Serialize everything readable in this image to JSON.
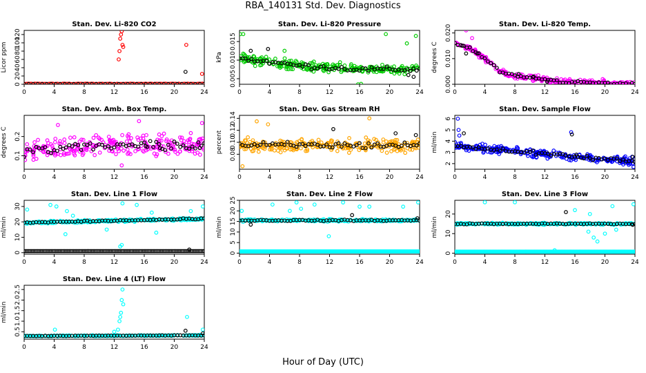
{
  "title": "RBA_140131  Std. Dev. Diagnostics",
  "xlabel": "Hour of Day (UTC)",
  "colors": {
    "co2": "#ff0000",
    "pressure": "#00cc00",
    "temp": "#ff00ff",
    "ambbox": "#ff00ff",
    "rh": "#ffa500",
    "sampleflow": "#0000ff",
    "lineflow": "#00ffff",
    "overlay": "#000000"
  },
  "chart_data": [
    {
      "id": "co2",
      "type": "scatter",
      "title": "Stan. Dev. Li-820 CO2",
      "ylabel": "Licor ppm",
      "xlim": [
        0,
        24
      ],
      "ylim": [
        0,
        130
      ],
      "yticks": [
        "0",
        "20",
        "40",
        "60",
        "80",
        "100",
        "120"
      ],
      "xticks": [
        "0",
        "4",
        "8",
        "12",
        "16",
        "20",
        "24"
      ],
      "baseline": 0.5,
      "noise": 1,
      "series": [
        {
          "name": "primary",
          "color": "#ff0000",
          "points": [
            [
              12.6,
              60
            ],
            [
              12.7,
              80
            ],
            [
              12.8,
              110
            ],
            [
              12.9,
              120
            ],
            [
              13.0,
              128
            ],
            [
              13.1,
              95
            ],
            [
              13.2,
              90
            ],
            [
              21.6,
              95
            ],
            [
              23.7,
              25
            ]
          ]
        },
        {
          "name": "overlay",
          "color": "#000000",
          "points": [
            [
              21.5,
              30
            ]
          ]
        }
      ]
    },
    {
      "id": "pressure",
      "type": "scatter",
      "title": "Stan. Dev. Li-820 Pressure",
      "ylabel": "kPa",
      "xlim": [
        0,
        24
      ],
      "ylim": [
        0.0035,
        0.018
      ],
      "yticks": [
        "0.005",
        "0.010",
        "0.015"
      ],
      "xticks": [
        "0",
        "4",
        "8",
        "12",
        "16",
        "20",
        "24"
      ],
      "trend": [
        [
          0,
          0.0105
        ],
        [
          8,
          0.0085
        ],
        [
          16,
          0.0075
        ],
        [
          24,
          0.0075
        ]
      ],
      "spread": 0.0018,
      "series": [
        {
          "name": "primary",
          "color": "#00cc00",
          "points": [
            [
              0.1,
              0.017
            ],
            [
              0.5,
              0.017
            ],
            [
              19.5,
              0.017
            ],
            [
              23.5,
              0.0165
            ],
            [
              22.3,
              0.0145
            ],
            [
              6,
              0.0125
            ],
            [
              15.8,
              0.0035
            ],
            [
              16.2,
              0.0036
            ]
          ]
        },
        {
          "name": "overlay",
          "color": "#000000",
          "points": [
            [
              1.5,
              0.0125
            ],
            [
              3.8,
              0.013
            ],
            [
              22.5,
              0.006
            ],
            [
              23.2,
              0.0055
            ]
          ]
        }
      ]
    },
    {
      "id": "temp",
      "type": "scatter",
      "title": "Stan. Dev. Li-820 Temp.",
      "ylabel": "degrees C",
      "xlim": [
        0,
        24
      ],
      "ylim": [
        0,
        0.021
      ],
      "yticks": [
        "0.000",
        "0.010",
        "0.020"
      ],
      "xticks": [
        "0",
        "4",
        "8",
        "12",
        "16",
        "20",
        "24"
      ],
      "trend": [
        [
          0,
          0.016
        ],
        [
          2,
          0.014
        ],
        [
          4,
          0.01
        ],
        [
          6,
          0.005
        ],
        [
          8,
          0.003
        ],
        [
          12,
          0.002
        ],
        [
          14,
          0.001
        ],
        [
          24,
          0.0
        ]
      ],
      "spread": 0.0015,
      "series": [
        {
          "name": "primary",
          "color": "#ff00ff",
          "points": [
            [
              1.5,
              0.021
            ],
            [
              2.3,
              0.018
            ],
            [
              15.3,
              0.002
            ],
            [
              19.7,
              0.002
            ]
          ]
        },
        {
          "name": "overlay",
          "color": "#000000",
          "points": [
            [
              1.0,
              0.015
            ],
            [
              1.5,
              0.012
            ],
            [
              3.0,
              0.012
            ],
            [
              8.5,
              0.004
            ],
            [
              10.5,
              0.003
            ],
            [
              12.3,
              0.001
            ]
          ]
        }
      ]
    },
    {
      "id": "ambbox",
      "type": "scatter",
      "title": "Stan. Dev. Amb. Box Temp.",
      "ylabel": "degrees C",
      "xlim": [
        0,
        24
      ],
      "ylim": [
        0.03,
        0.31
      ],
      "yticks": [
        "0.1",
        "0.2"
      ],
      "xticks": [
        "0",
        "4",
        "8",
        "12",
        "16",
        "20",
        "24"
      ],
      "trend": [
        [
          0,
          0.12
        ],
        [
          12,
          0.16
        ],
        [
          24,
          0.15
        ]
      ],
      "spread": 0.08,
      "series": [
        {
          "name": "primary",
          "color": "#ff00ff",
          "points": [
            [
              15.3,
              0.28
            ],
            [
              23.7,
              0.27
            ],
            [
              13,
              0.05
            ],
            [
              4.5,
              0.26
            ]
          ]
        },
        {
          "name": "overlay",
          "color": "#000000",
          "points": [
            [
              16.2,
              0.15
            ],
            [
              18.1,
              0.14
            ],
            [
              23.4,
              0.14
            ]
          ]
        }
      ]
    },
    {
      "id": "rh",
      "type": "scatter",
      "title": "Stan. Dev. Gas Stream RH",
      "ylabel": "percent",
      "xlim": [
        0,
        24
      ],
      "ylim": [
        0.055,
        0.145
      ],
      "yticks": [
        "0.08",
        "0.10",
        "0.12",
        "0.14"
      ],
      "xticks": [
        "0",
        "4",
        "8",
        "12",
        "16",
        "20",
        "24"
      ],
      "trend": [
        [
          0,
          0.095
        ],
        [
          24,
          0.095
        ]
      ],
      "spread": 0.015,
      "series": [
        {
          "name": "primary",
          "color": "#ffa500",
          "points": [
            [
              2.3,
              0.135
            ],
            [
              3.8,
              0.13
            ],
            [
              17.3,
              0.14
            ],
            [
              0.4,
              0.06
            ]
          ]
        },
        {
          "name": "overlay",
          "color": "#000000",
          "points": [
            [
              12.5,
              0.122
            ],
            [
              20.8,
              0.115
            ],
            [
              23.5,
              0.112
            ]
          ]
        }
      ]
    },
    {
      "id": "sampleflow",
      "type": "scatter",
      "title": "Stan. Dev. Sample Flow",
      "ylabel": "ml/min",
      "xlim": [
        0,
        24
      ],
      "ylim": [
        1.5,
        6.3
      ],
      "yticks": [
        "2",
        "3",
        "4",
        "5",
        "6"
      ],
      "xticks": [
        "0",
        "4",
        "8",
        "12",
        "16",
        "20",
        "24"
      ],
      "trend": [
        [
          0,
          3.6
        ],
        [
          8,
          3.1
        ],
        [
          16,
          2.6
        ],
        [
          24,
          2.2
        ]
      ],
      "spread": 0.5,
      "series": [
        {
          "name": "primary",
          "color": "#0000ff",
          "points": [
            [
              0.4,
              6.0
            ],
            [
              0.5,
              5.0
            ],
            [
              0.6,
              4.5
            ],
            [
              23.8,
              1.7
            ],
            [
              15.5,
              4.8
            ]
          ]
        },
        {
          "name": "overlay",
          "color": "#000000",
          "points": [
            [
              1.2,
              4.7
            ],
            [
              15.6,
              4.6
            ],
            [
              16.2,
              2.8
            ],
            [
              23.7,
              2.6
            ]
          ]
        }
      ]
    },
    {
      "id": "line1",
      "type": "scatter",
      "title": "Stan. Dev. Line 1 Flow",
      "ylabel": "ml/min",
      "xlim": [
        0,
        24
      ],
      "ylim": [
        -1,
        34
      ],
      "yticks": [
        "0",
        "10",
        "20",
        "30"
      ],
      "xticks": [
        "0",
        "4",
        "8",
        "12",
        "16",
        "20",
        "24"
      ],
      "trend": [
        [
          0,
          19.5
        ],
        [
          24,
          22
        ]
      ],
      "spread": 1.2,
      "series": [
        {
          "name": "primary",
          "color": "#00ffff",
          "points": [
            [
              0.4,
              28
            ],
            [
              3.5,
              31
            ],
            [
              4.3,
              30
            ],
            [
              5.7,
              27
            ],
            [
              6.5,
              24
            ],
            [
              11.0,
              15
            ],
            [
              12.8,
              4
            ],
            [
              13.0,
              5
            ],
            [
              13.1,
              32
            ],
            [
              15.0,
              31
            ],
            [
              17.0,
              26
            ],
            [
              17.6,
              13
            ],
            [
              22.2,
              27
            ],
            [
              23.8,
              30
            ],
            [
              5.5,
              12
            ]
          ]
        },
        {
          "name": "overlay",
          "color": "#000000",
          "points": [
            [
              22.0,
              2.0
            ]
          ]
        }
      ],
      "bottom_band": {
        "value": 1.0,
        "color": "#000000"
      }
    },
    {
      "id": "line2",
      "type": "scatter",
      "title": "Stan. Dev. Line 2 Flow",
      "ylabel": "ml/min",
      "xlim": [
        0,
        24
      ],
      "ylim": [
        -0.5,
        25
      ],
      "yticks": [
        "0",
        "5",
        "10",
        "15",
        "20",
        "25"
      ],
      "xticks": [
        "0",
        "4",
        "8",
        "12",
        "16",
        "20",
        "24"
      ],
      "trend": [
        [
          0,
          15.5
        ],
        [
          24,
          15.5
        ]
      ],
      "spread": 0.8,
      "series": [
        {
          "name": "primary",
          "color": "#00ffff",
          "points": [
            [
              0.3,
              20
            ],
            [
              4.4,
              23
            ],
            [
              7.6,
              24
            ],
            [
              8.2,
              21
            ],
            [
              10.0,
              23
            ],
            [
              11.9,
              8
            ],
            [
              13.8,
              24
            ],
            [
              16.0,
              22
            ],
            [
              17.3,
              22
            ],
            [
              21.8,
              22
            ],
            [
              23.8,
              24
            ],
            [
              6.7,
              20
            ]
          ]
        },
        {
          "name": "overlay",
          "color": "#000000",
          "points": [
            [
              15.0,
              18
            ],
            [
              23.7,
              16.5
            ],
            [
              1.5,
              13.5
            ]
          ]
        }
      ],
      "bottom_band": {
        "value": 0.8,
        "color": "#00ffff"
      }
    },
    {
      "id": "line3",
      "type": "scatter",
      "title": "Stan. Dev. Line 3 Flow",
      "ylabel": "ml/min",
      "xlim": [
        0,
        24
      ],
      "ylim": [
        -0.5,
        27
      ],
      "yticks": [
        "0",
        "10",
        "20"
      ],
      "xticks": [
        "0",
        "4",
        "8",
        "12",
        "16",
        "20",
        "24"
      ],
      "trend": [
        [
          0,
          15
        ],
        [
          24,
          15
        ]
      ],
      "spread": 0.7,
      "series": [
        {
          "name": "primary",
          "color": "#00ffff",
          "points": [
            [
              4.0,
              26
            ],
            [
              8.0,
              26
            ],
            [
              13.3,
              1.5
            ],
            [
              16.0,
              22
            ],
            [
              18.0,
              20
            ],
            [
              18.5,
              8
            ],
            [
              19.0,
              6
            ],
            [
              20.0,
              10
            ],
            [
              21.0,
              24
            ],
            [
              23.8,
              25
            ],
            [
              17.8,
              11
            ],
            [
              21.5,
              12
            ]
          ]
        },
        {
          "name": "overlay",
          "color": "#000000",
          "points": [
            [
              14.8,
              21
            ],
            [
              23.7,
              14.5
            ]
          ]
        }
      ],
      "bottom_band": {
        "value": 0.8,
        "color": "#00ffff"
      }
    },
    {
      "id": "line4",
      "type": "scatter",
      "title": "Stan. Dev. Line 4 (LT) Flow",
      "ylabel": "ml/min",
      "xlim": [
        0,
        24
      ],
      "ylim": [
        0.15,
        2.7
      ],
      "yticks": [
        "0.5",
        "1.0",
        "1.5",
        "2.0",
        "2.5"
      ],
      "xticks": [
        "0",
        "4",
        "8",
        "12",
        "16",
        "20",
        "24"
      ],
      "trend": [
        [
          0,
          0.3
        ],
        [
          24,
          0.33
        ]
      ],
      "spread": 0.03,
      "series": [
        {
          "name": "primary",
          "color": "#00ffff",
          "points": [
            [
              4.1,
              0.6
            ],
            [
              12.0,
              0.5
            ],
            [
              12.5,
              0.6
            ],
            [
              12.7,
              1.0
            ],
            [
              12.8,
              1.2
            ],
            [
              12.9,
              1.4
            ],
            [
              13.0,
              2.0
            ],
            [
              13.1,
              2.5
            ],
            [
              13.2,
              1.8
            ],
            [
              21.7,
              1.2
            ],
            [
              23.8,
              0.6
            ]
          ]
        },
        {
          "name": "overlay",
          "color": "#000000",
          "points": [
            [
              21.5,
              0.55
            ],
            [
              23.8,
              0.42
            ]
          ]
        }
      ]
    }
  ]
}
